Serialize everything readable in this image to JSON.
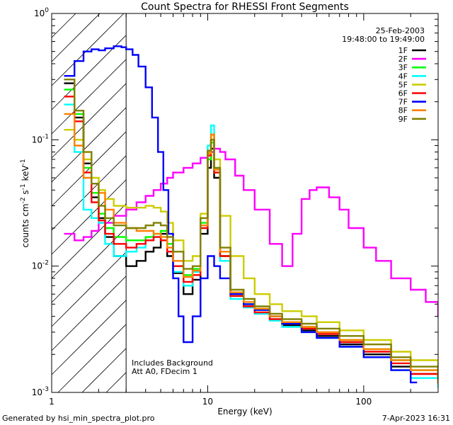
{
  "chart_data": {
    "type": "line",
    "title": "Count Spectra for RHESSI Front Segments",
    "xlabel": "Energy (keV)",
    "ylabel": "counts cm-2 s-1 keV-1",
    "ylabel_parts": {
      "base": "counts cm",
      "exp1": "-2",
      "mid1": " s",
      "exp2": "-1",
      "mid2": " keV",
      "exp3": "-1"
    },
    "xscale": "log",
    "yscale": "log",
    "xlim": [
      1,
      300
    ],
    "ylim": [
      0.001,
      1
    ],
    "x_ticks": [
      {
        "value": 1,
        "label": "1"
      },
      {
        "value": 10,
        "label": "10"
      },
      {
        "value": 100,
        "label": "100"
      }
    ],
    "y_ticks": [
      {
        "value": 1,
        "base": "10",
        "exp": "0"
      },
      {
        "value": 0.1,
        "base": "10",
        "exp": "-1"
      },
      {
        "value": 0.01,
        "base": "10",
        "exp": "-2"
      },
      {
        "value": 0.001,
        "base": "10",
        "exp": "-3"
      }
    ],
    "hatched_region": {
      "x_from": 1,
      "x_to": 3
    },
    "date": "25-Feb-2003",
    "time_range": "19:48:00 to 19:49:00",
    "annotations": [
      "Includes Background",
      "Att A0, FDecim 1"
    ],
    "legend_position": "top-right",
    "series": [
      {
        "name": "1F",
        "color": "#000000",
        "x": [
          1.2,
          1.4,
          1.6,
          1.8,
          2.0,
          2.2,
          2.5,
          3.0,
          3.5,
          4.0,
          4.5,
          5.0,
          5.5,
          6.0,
          7.0,
          8.0,
          9.0,
          10.0,
          10.5,
          11.0,
          12.0,
          14.0,
          17.0,
          20.0,
          25.0,
          30.0,
          40.0,
          50.0,
          70.0,
          100.0,
          150.0,
          200.0,
          300.0
        ],
        "y": [
          0.28,
          0.15,
          0.065,
          0.035,
          0.024,
          0.017,
          0.012,
          0.01,
          0.011,
          0.013,
          0.014,
          0.018,
          0.012,
          0.0088,
          0.006,
          0.0078,
          0.018,
          0.06,
          0.085,
          0.05,
          0.012,
          0.006,
          0.0048,
          0.0042,
          0.0038,
          0.0034,
          0.0031,
          0.0028,
          0.0024,
          0.002,
          0.0016,
          0.0014,
          0.0012
        ]
      },
      {
        "name": "2F",
        "color": "#ff00ff",
        "x": [
          1.2,
          1.4,
          1.6,
          1.8,
          2.0,
          2.5,
          3.0,
          3.5,
          4.0,
          4.5,
          5.0,
          5.5,
          6.0,
          7.0,
          8.0,
          9.0,
          10.0,
          11.0,
          12.0,
          13.0,
          15.0,
          17.0,
          20.0,
          25.0,
          30.0,
          35.0,
          40.0,
          45.0,
          50.0,
          60.0,
          70.0,
          80.0,
          100.0,
          120.0,
          150.0,
          200.0,
          250.0,
          300.0
        ],
        "y": [
          0.018,
          0.016,
          0.017,
          0.019,
          0.022,
          0.025,
          0.028,
          0.032,
          0.036,
          0.04,
          0.045,
          0.05,
          0.055,
          0.06,
          0.065,
          0.072,
          0.08,
          0.085,
          0.08,
          0.07,
          0.052,
          0.04,
          0.028,
          0.015,
          0.01,
          0.018,
          0.034,
          0.04,
          0.042,
          0.035,
          0.028,
          0.02,
          0.014,
          0.011,
          0.008,
          0.0065,
          0.0052,
          0.004
        ]
      },
      {
        "name": "3F",
        "color": "#00ff00",
        "x": [
          1.2,
          1.4,
          1.6,
          1.8,
          2.0,
          2.2,
          2.5,
          3.0,
          3.5,
          4.0,
          4.5,
          5.0,
          5.5,
          6.0,
          7.0,
          8.0,
          9.0,
          10.0,
          10.5,
          11.0,
          12.0,
          14.0,
          17.0,
          20.0,
          25.0,
          30.0,
          40.0,
          50.0,
          70.0,
          100.0,
          150.0,
          200.0,
          300.0
        ],
        "y": [
          0.25,
          0.16,
          0.06,
          0.038,
          0.026,
          0.02,
          0.017,
          0.016,
          0.016,
          0.017,
          0.018,
          0.019,
          0.015,
          0.01,
          0.0085,
          0.0095,
          0.022,
          0.07,
          0.095,
          0.055,
          0.012,
          0.006,
          0.005,
          0.0045,
          0.004,
          0.0036,
          0.0033,
          0.003,
          0.0026,
          0.0022,
          0.0018,
          0.0015,
          0.0012
        ]
      },
      {
        "name": "4F",
        "color": "#00ffff",
        "x": [
          1.2,
          1.4,
          1.6,
          1.8,
          2.0,
          2.2,
          2.5,
          3.0,
          3.5,
          4.0,
          4.5,
          5.0,
          5.5,
          6.0,
          7.0,
          8.0,
          9.0,
          10.0,
          10.5,
          11.0,
          12.0,
          14.0,
          17.0,
          20.0,
          25.0,
          30.0,
          40.0,
          50.0,
          70.0,
          100.0,
          150.0,
          200.0,
          300.0
        ],
        "y": [
          0.19,
          0.08,
          0.028,
          0.024,
          0.022,
          0.015,
          0.012,
          0.013,
          0.014,
          0.016,
          0.017,
          0.016,
          0.013,
          0.009,
          0.007,
          0.009,
          0.02,
          0.09,
          0.13,
          0.06,
          0.011,
          0.0055,
          0.0047,
          0.0042,
          0.0037,
          0.0033,
          0.003,
          0.0027,
          0.0023,
          0.0019,
          0.0015,
          0.0013,
          0.0011
        ]
      },
      {
        "name": "5F",
        "color": "#cccc00",
        "x": [
          1.2,
          1.4,
          1.6,
          1.8,
          2.0,
          2.2,
          2.5,
          3.0,
          3.5,
          4.0,
          4.5,
          5.0,
          5.5,
          6.0,
          7.0,
          8.0,
          9.0,
          10.0,
          10.5,
          11.0,
          12.0,
          14.0,
          17.0,
          20.0,
          25.0,
          30.0,
          40.0,
          50.0,
          70.0,
          100.0,
          150.0,
          200.0,
          300.0
        ],
        "y": [
          0.12,
          0.1,
          0.07,
          0.05,
          0.04,
          0.034,
          0.03,
          0.029,
          0.029,
          0.03,
          0.029,
          0.027,
          0.022,
          0.016,
          0.011,
          0.012,
          0.026,
          0.08,
          0.11,
          0.07,
          0.025,
          0.012,
          0.008,
          0.006,
          0.005,
          0.0044,
          0.004,
          0.0036,
          0.0031,
          0.0026,
          0.0021,
          0.0018,
          0.0015
        ]
      },
      {
        "name": "6F",
        "color": "#ff0000",
        "x": [
          1.2,
          1.4,
          1.6,
          1.8,
          2.0,
          2.2,
          2.5,
          3.0,
          3.5,
          4.0,
          4.5,
          5.0,
          5.5,
          6.0,
          7.0,
          8.0,
          9.0,
          10.0,
          10.5,
          11.0,
          12.0,
          14.0,
          17.0,
          20.0,
          25.0,
          30.0,
          40.0,
          50.0,
          70.0,
          100.0,
          150.0,
          200.0,
          300.0
        ],
        "y": [
          0.22,
          0.14,
          0.055,
          0.032,
          0.023,
          0.018,
          0.015,
          0.014,
          0.015,
          0.016,
          0.017,
          0.016,
          0.013,
          0.01,
          0.0075,
          0.0085,
          0.02,
          0.075,
          0.1,
          0.055,
          0.012,
          0.0058,
          0.0048,
          0.0043,
          0.0038,
          0.0035,
          0.0032,
          0.0029,
          0.0025,
          0.0021,
          0.0017,
          0.0014,
          0.0012
        ]
      },
      {
        "name": "7F",
        "color": "#0000ff",
        "x": [
          1.2,
          1.4,
          1.6,
          1.8,
          2.0,
          2.2,
          2.5,
          2.8,
          3.0,
          3.3,
          3.6,
          4.0,
          4.4,
          4.8,
          5.2,
          5.6,
          6.0,
          6.5,
          7.0,
          8.0,
          9.0,
          10.0,
          11.0,
          12.0,
          14.0,
          17.0,
          20.0,
          25.0,
          30.0,
          40.0,
          50.0,
          70.0,
          100.0,
          150.0,
          200.0
        ],
        "y": [
          0.32,
          0.42,
          0.5,
          0.52,
          0.51,
          0.53,
          0.55,
          0.54,
          0.52,
          0.47,
          0.38,
          0.26,
          0.15,
          0.08,
          0.04,
          0.018,
          0.008,
          0.004,
          0.0025,
          0.004,
          0.008,
          0.012,
          0.01,
          0.008,
          0.006,
          0.005,
          0.0045,
          0.004,
          0.0035,
          0.003,
          0.0027,
          0.0023,
          0.0019,
          0.0015,
          0.0012
        ]
      },
      {
        "name": "8F",
        "color": "#ff8000",
        "x": [
          1.2,
          1.4,
          1.6,
          1.8,
          2.0,
          2.2,
          2.5,
          3.0,
          3.5,
          4.0,
          4.5,
          5.0,
          5.5,
          6.0,
          7.0,
          8.0,
          9.0,
          10.0,
          10.5,
          11.0,
          12.0,
          14.0,
          17.0,
          20.0,
          25.0,
          30.0,
          40.0,
          50.0,
          70.0,
          100.0,
          150.0,
          200.0,
          300.0
        ],
        "y": [
          0.16,
          0.09,
          0.05,
          0.045,
          0.038,
          0.028,
          0.022,
          0.02,
          0.019,
          0.019,
          0.018,
          0.017,
          0.014,
          0.011,
          0.0082,
          0.0092,
          0.021,
          0.078,
          0.11,
          0.058,
          0.013,
          0.0062,
          0.0052,
          0.0046,
          0.004,
          0.0036,
          0.0033,
          0.003,
          0.0026,
          0.0022,
          0.0018,
          0.0015,
          0.0012
        ]
      },
      {
        "name": "9F",
        "color": "#808000",
        "x": [
          1.2,
          1.4,
          1.6,
          1.8,
          2.0,
          2.2,
          2.5,
          3.0,
          3.5,
          4.0,
          4.5,
          5.0,
          5.5,
          6.0,
          7.0,
          8.0,
          9.0,
          10.0,
          10.5,
          11.0,
          12.0,
          14.0,
          17.0,
          20.0,
          25.0,
          30.0,
          40.0,
          50.0,
          70.0,
          100.0,
          150.0,
          200.0,
          300.0
        ],
        "y": [
          0.3,
          0.17,
          0.08,
          0.045,
          0.03,
          0.024,
          0.021,
          0.02,
          0.02,
          0.021,
          0.022,
          0.021,
          0.017,
          0.013,
          0.0095,
          0.01,
          0.024,
          0.082,
          0.1,
          0.06,
          0.014,
          0.0065,
          0.0055,
          0.0048,
          0.0042,
          0.0038,
          0.0035,
          0.0032,
          0.0028,
          0.0024,
          0.0019,
          0.0016,
          0.0013
        ]
      }
    ]
  },
  "footer": {
    "generated_by": "Generated by hsi_min_spectra_plot.pro",
    "timestamp": "7-Apr-2023 16:31"
  }
}
